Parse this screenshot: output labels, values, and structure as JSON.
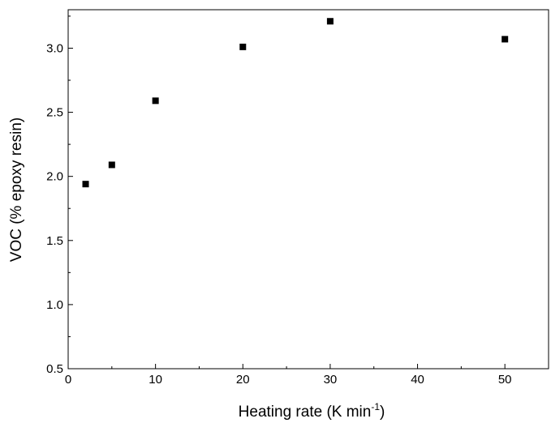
{
  "chart_data": {
    "type": "scatter",
    "title": "",
    "xlabel_main": "Heating rate (K min",
    "xlabel_sup": "-1",
    "xlabel_close": ")",
    "ylabel": "VOC (% epoxy resin)",
    "xlim": [
      0,
      55
    ],
    "ylim": [
      0.5,
      3.3
    ],
    "x_ticks": [
      0,
      10,
      20,
      30,
      40,
      50
    ],
    "x_tick_labels": [
      "0",
      "10",
      "20",
      "30",
      "40",
      "50"
    ],
    "y_ticks": [
      0.5,
      1.0,
      1.5,
      2.0,
      2.5,
      3.0
    ],
    "y_tick_labels": [
      "0.5",
      "1.0",
      "1.5",
      "2.0",
      "2.5",
      "3.0"
    ],
    "grid": false,
    "marker": "square",
    "marker_color": "#000000",
    "points": [
      {
        "x": 2,
        "y": 1.94
      },
      {
        "x": 5,
        "y": 2.09
      },
      {
        "x": 10,
        "y": 2.59
      },
      {
        "x": 20,
        "y": 3.01
      },
      {
        "x": 30,
        "y": 3.21
      },
      {
        "x": 50,
        "y": 3.07
      }
    ]
  }
}
